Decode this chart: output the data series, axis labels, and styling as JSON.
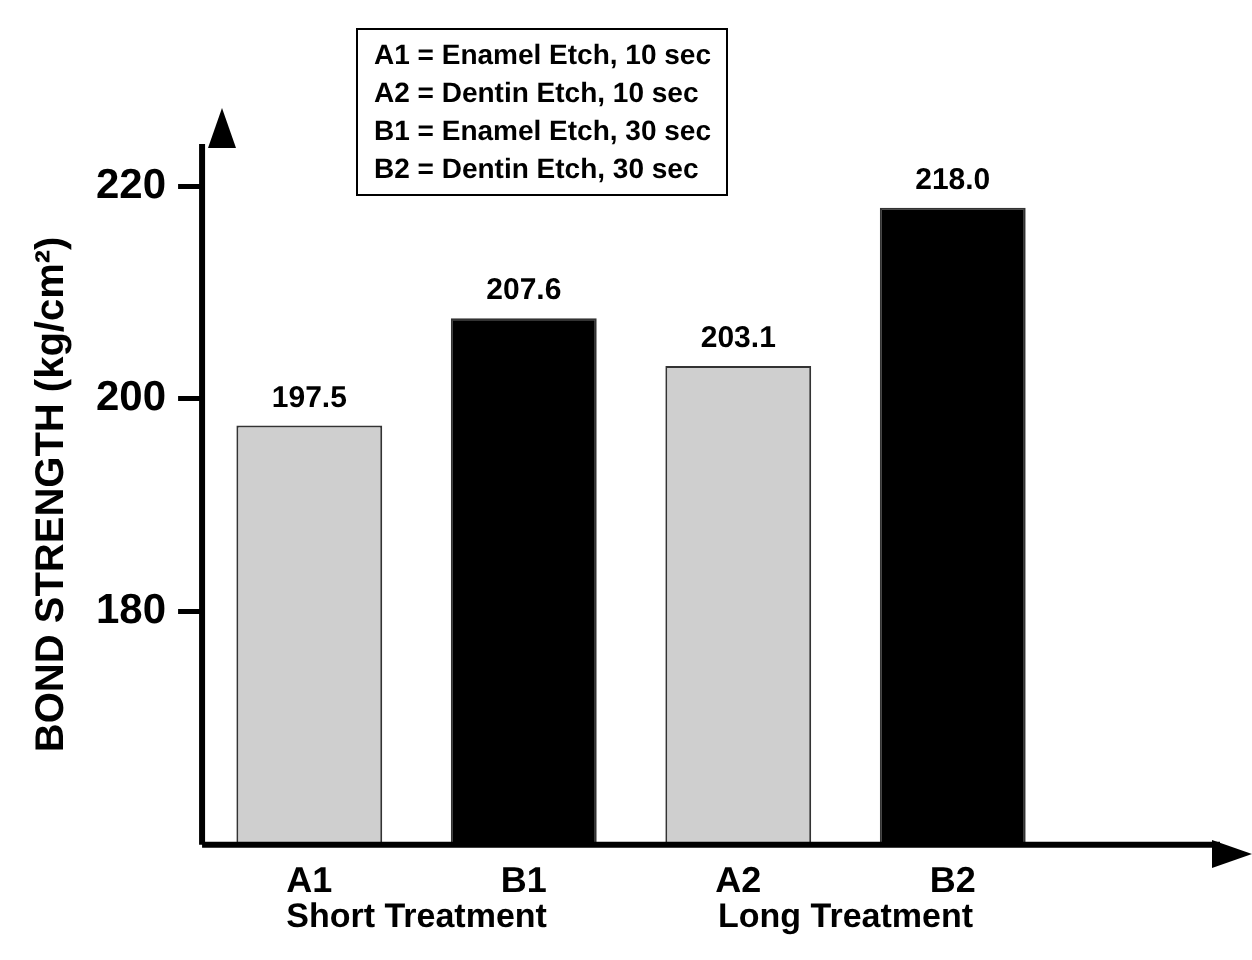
{
  "chart_data": {
    "type": "bar",
    "ylabel": "BOND STRENGTH (kg/cm²)",
    "categories": [
      "A1",
      "B1",
      "A2",
      "B2"
    ],
    "values": [
      197.5,
      207.6,
      203.1,
      218.0
    ],
    "colors": [
      "#cfcfcf",
      "#000000",
      "#cfcfcf",
      "#000000"
    ],
    "ylim": [
      158,
      224
    ],
    "yticks": [
      180,
      200,
      220
    ],
    "grid": false,
    "value_labels": [
      "197.5",
      "207.6",
      "203.1",
      "218.0"
    ],
    "annotations": [
      "A1 = Enamel Etch, 10 sec",
      "A2 = Dentin Etch, 10 sec",
      "B1 = Enamel Etch, 30 sec",
      "B2 = Dentin Etch, 30 sec",
      "Short Treatment",
      "Long Treatment"
    ]
  }
}
